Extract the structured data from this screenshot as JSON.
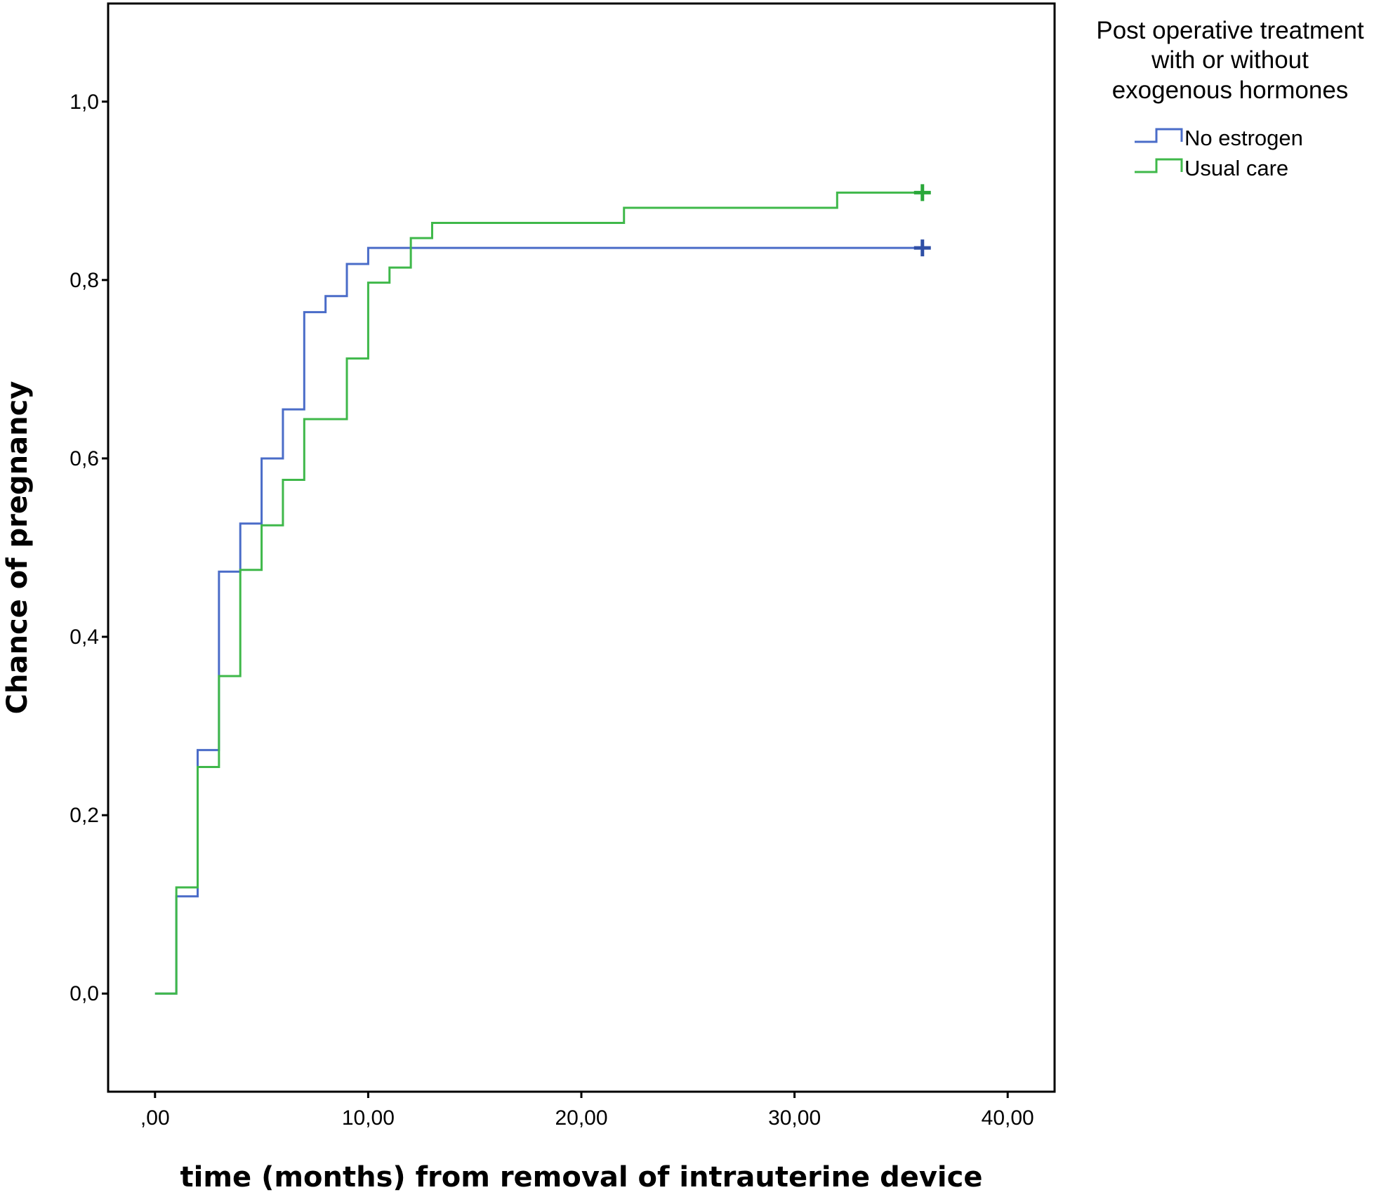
{
  "chart_data": {
    "type": "line",
    "subtype": "step (Kaplan-Meier cumulative incidence)",
    "xlabel": "time (months) from removal of intrauterine device",
    "ylabel": "Chance of pregnancy",
    "xlim": [
      -2.2,
      42.2
    ],
    "ylim": [
      -0.11,
      1.11
    ],
    "x_ticks": [
      0,
      10,
      20,
      30,
      40
    ],
    "x_tick_labels": [
      ",00",
      "10,00",
      "20,00",
      "30,00",
      "40,00"
    ],
    "y_ticks": [
      0.0,
      0.2,
      0.4,
      0.6,
      0.8,
      1.0
    ],
    "y_tick_labels": [
      "0,0",
      "0,2",
      "0,4",
      "0,6",
      "0,8",
      "1,0"
    ],
    "grid": false,
    "legend": {
      "title_lines": [
        "Post operative treatment",
        "with or without",
        "exogenous hormones"
      ],
      "placement": "right, outside plot",
      "entries": [
        "No estrogen",
        "Usual care"
      ]
    },
    "series": [
      {
        "name": "No estrogen",
        "color": "#4a6cc8",
        "censor_color": "#2f4fa6",
        "x": [
          0,
          1,
          2,
          3,
          4,
          5,
          6,
          7,
          8,
          9,
          10,
          36
        ],
        "y": [
          0.0,
          0.109,
          0.273,
          0.473,
          0.527,
          0.6,
          0.655,
          0.764,
          0.782,
          0.818,
          0.836,
          0.836
        ],
        "censored": [
          {
            "x": 36,
            "y": 0.836
          }
        ]
      },
      {
        "name": "Usual care",
        "color": "#3fb84a",
        "censor_color": "#2aa83a",
        "x": [
          0,
          1,
          2,
          3,
          4,
          5,
          6,
          7,
          9,
          10,
          11,
          12,
          13,
          22,
          32,
          36
        ],
        "y": [
          0.0,
          0.119,
          0.254,
          0.356,
          0.475,
          0.525,
          0.576,
          0.644,
          0.712,
          0.797,
          0.814,
          0.847,
          0.864,
          0.881,
          0.898,
          0.898
        ],
        "censored": [
          {
            "x": 36,
            "y": 0.898
          }
        ]
      }
    ]
  }
}
